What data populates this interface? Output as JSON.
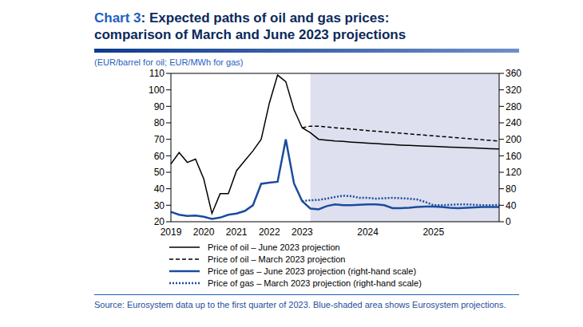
{
  "chart_data": {
    "type": "line",
    "title": "Chart 3: Expected paths of oil and gas prices: comparison of March and June 2023 projections",
    "subtitle": "(EUR/barrel for oil; EUR/MWh for gas)",
    "source": "Source: Eurosystem data up to the first quarter of 2023. Blue-shaded area shows Eurosystem projections.",
    "categories": [
      "2019",
      null,
      null,
      null,
      "2020",
      null,
      null,
      null,
      "2021",
      null,
      null,
      null,
      "2022",
      null,
      null,
      null,
      "2023",
      null,
      null,
      null,
      null,
      null,
      null,
      null,
      "2024",
      null,
      null,
      null,
      null,
      null,
      null,
      null,
      "2025",
      null,
      null,
      null,
      null,
      null,
      null,
      null,
      null
    ],
    "ylim": [
      20,
      110
    ],
    "yticks": [
      20,
      30,
      40,
      50,
      60,
      70,
      80,
      90,
      100,
      110
    ],
    "y2lim": [
      0,
      360
    ],
    "y2ticks": [
      0,
      40,
      80,
      120,
      160,
      200,
      240,
      280,
      320,
      360
    ],
    "grid": false,
    "legend": "bottom",
    "annotations": [
      {
        "type": "shaded_area",
        "from": 17,
        "to": 40,
        "color": "#d3d5ea"
      }
    ],
    "series": [
      {
        "name": "Price of oil – June 2023 projection",
        "color": "#000000",
        "line_style": "solid",
        "values": [
          55,
          62,
          56,
          58,
          46,
          25,
          37,
          37,
          51,
          57,
          63,
          70,
          92,
          109,
          105,
          88,
          77,
          74,
          70,
          69.5,
          69,
          68.7,
          68.3,
          68,
          67.7,
          67.4,
          67.1,
          66.8,
          66.5,
          66.3,
          66.1,
          65.9,
          65.7,
          65.5,
          65.3,
          65.1,
          64.9,
          64.7,
          64.5,
          64.3,
          64.2
        ]
      },
      {
        "name": "Price of oil – March 2023 projection",
        "color": "#000000",
        "line_style": "dashed",
        "values": [
          null,
          null,
          null,
          null,
          null,
          null,
          null,
          null,
          null,
          null,
          null,
          null,
          null,
          null,
          null,
          null,
          77,
          78,
          78,
          77.5,
          77,
          76.6,
          76.2,
          75.8,
          75.3,
          74.9,
          74.5,
          74.1,
          73.7,
          73.3,
          72.9,
          72.5,
          72.1,
          71.7,
          71.3,
          70.9,
          70.5,
          70.1,
          69.7,
          69.3,
          68.9
        ]
      },
      {
        "name": "Price of gas – June 2023 projection (right-hand scale)",
        "color": "#1a4c9e",
        "line_style": "solid",
        "axis": "y2",
        "values": [
          24,
          17,
          14,
          15,
          12,
          7,
          10,
          17,
          20,
          26,
          40,
          92,
          95,
          97,
          200,
          93,
          50,
          32,
          30,
          38,
          42,
          40,
          40,
          41,
          42,
          42,
          40,
          33,
          33,
          34,
          36,
          37,
          37,
          36,
          34,
          33,
          34,
          35,
          36,
          36,
          36
        ]
      },
      {
        "name": "Price of gas – March 2023 projection (right-hand scale)",
        "color": "#1a4c9e",
        "line_style": "dotted",
        "axis": "y2",
        "values": [
          null,
          null,
          null,
          null,
          null,
          null,
          null,
          null,
          null,
          null,
          null,
          null,
          null,
          null,
          null,
          null,
          50,
          52,
          53,
          56,
          60,
          63,
          62,
          58,
          58,
          56,
          57,
          58,
          57,
          56,
          54,
          48,
          40,
          40,
          41,
          42,
          42,
          41,
          40,
          40,
          41
        ]
      }
    ]
  }
}
